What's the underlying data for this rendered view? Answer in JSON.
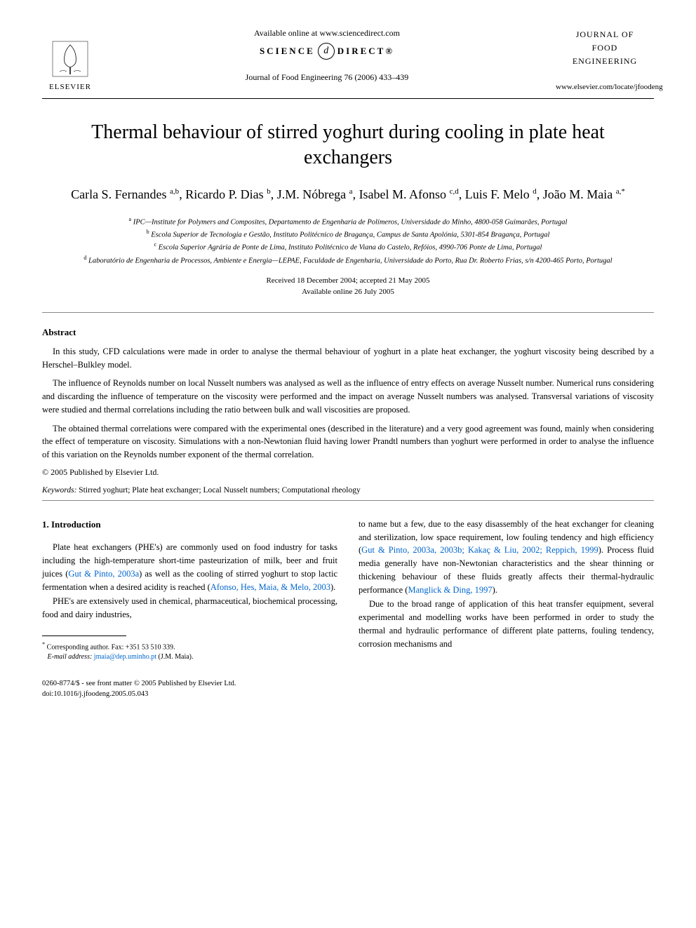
{
  "header": {
    "available_online": "Available online at www.sciencedirect.com",
    "sciencedirect_left": "SCIENCE",
    "sciencedirect_symbol": "d",
    "sciencedirect_right": "DIRECT®",
    "citation": "Journal of Food Engineering 76 (2006) 433–439",
    "elsevier_label": "ELSEVIER",
    "journal_name_l1": "JOURNAL OF",
    "journal_name_l2": "FOOD",
    "journal_name_l3": "ENGINEERING",
    "journal_url": "www.elsevier.com/locate/jfoodeng"
  },
  "title": "Thermal behaviour of stirred yoghurt during cooling in plate heat exchangers",
  "authors_html": "Carla S. Fernandes <sup>a,b</sup>, Ricardo P. Dias <sup>b</sup>, J.M. Nóbrega <sup>a</sup>, Isabel M. Afonso <sup>c,d</sup>, Luis F. Melo <sup>d</sup>, João M. Maia <sup>a,*</sup>",
  "affiliations": {
    "a": "IPC—Institute for Polymers and Composites, Departamento de Engenharia de Polímeros, Universidade do Minho, 4800-058 Guimarães, Portugal",
    "b": "Escola Superior de Tecnologia e Gestão, Instituto Politécnico de Bragança, Campus de Santa Apolónia, 5301-854 Bragança, Portugal",
    "c": "Escola Superior Agrária de Ponte de Lima, Instituto Politécnico de Viana do Castelo, Refóios, 4990-706 Ponte de Lima, Portugal",
    "d": "Laboratório de Engenharia de Processos, Ambiente e Energia—LEPAE, Faculdade de Engenharia, Universidade do Porto, Rua Dr. Roberto Frias, s/n 4200-465 Porto, Portugal"
  },
  "dates": {
    "received_accepted": "Received 18 December 2004; accepted 21 May 2005",
    "available": "Available online 26 July 2005"
  },
  "abstract": {
    "heading": "Abstract",
    "p1": "In this study, CFD calculations were made in order to analyse the thermal behaviour of yoghurt in a plate heat exchanger, the yoghurt viscosity being described by a Herschel–Bulkley model.",
    "p2": "The influence of Reynolds number on local Nusselt numbers was analysed as well as the influence of entry effects on average Nusselt number. Numerical runs considering and discarding the influence of temperature on the viscosity were performed and the impact on average Nusselt numbers was analysed. Transversal variations of viscosity were studied and thermal correlations including the ratio between bulk and wall viscosities are proposed.",
    "p3": "The obtained thermal correlations were compared with the experimental ones (described in the literature) and a very good agreement was found, mainly when considering the effect of temperature on viscosity. Simulations with a non-Newtonian fluid having lower Prandtl numbers than yoghurt were performed in order to analyse the influence of this variation on the Reynolds number exponent of the thermal correlation.",
    "copyright": "© 2005 Published by Elsevier Ltd."
  },
  "keywords": {
    "label": "Keywords:",
    "text": " Stirred yoghurt; Plate heat exchanger; Local Nusselt numbers; Computational rheology"
  },
  "intro": {
    "heading": "1. Introduction",
    "left_p1a": "Plate heat exchangers (PHE's) are commonly used on food industry for tasks including the high-temperature short-time pasteurization of milk, beer and fruit juices (",
    "left_ref1": "Gut & Pinto, 2003a",
    "left_p1b": ") as well as the cooling of stirred yoghurt to stop lactic fermentation when a desired acidity is reached (",
    "left_ref2": "Afonso, Hes, Maia, & Melo, 2003",
    "left_p1c": ").",
    "left_p2": "PHE's are extensively used in chemical, pharmaceutical, biochemical processing, food and dairy industries,",
    "right_p1a": "to name but a few, due to the easy disassembly of the heat exchanger for cleaning and sterilization, low space requirement, low fouling tendency and high efficiency (",
    "right_ref1": "Gut & Pinto, 2003a, 2003b; Kakaç & Liu, 2002; Reppich, 1999",
    "right_p1b": "). Process fluid media generally have non-Newtonian characteristics and the shear thinning or thickening behaviour of these fluids greatly affects their thermal-hydraulic performance (",
    "right_ref2": "Manglick & Ding, 1997",
    "right_p1c": ").",
    "right_p2": "Due to the broad range of application of this heat transfer equipment, several experimental and modelling works have been performed in order to study the thermal and hydraulic performance of different plate patterns, fouling tendency, corrosion mechanisms and"
  },
  "footnote": {
    "corresponding": "Corresponding author. Fax: +351 53 510 339.",
    "email_label": "E-mail address:",
    "email": "jmaia@dep.uminho.pt",
    "email_name": " (J.M. Maia)."
  },
  "footer": {
    "line1": "0260-8774/$ - see front matter © 2005 Published by Elsevier Ltd.",
    "line2": "doi:10.1016/j.jfoodeng.2005.05.043"
  },
  "colors": {
    "link": "#0066cc",
    "text": "#000000",
    "bg": "#ffffff"
  }
}
